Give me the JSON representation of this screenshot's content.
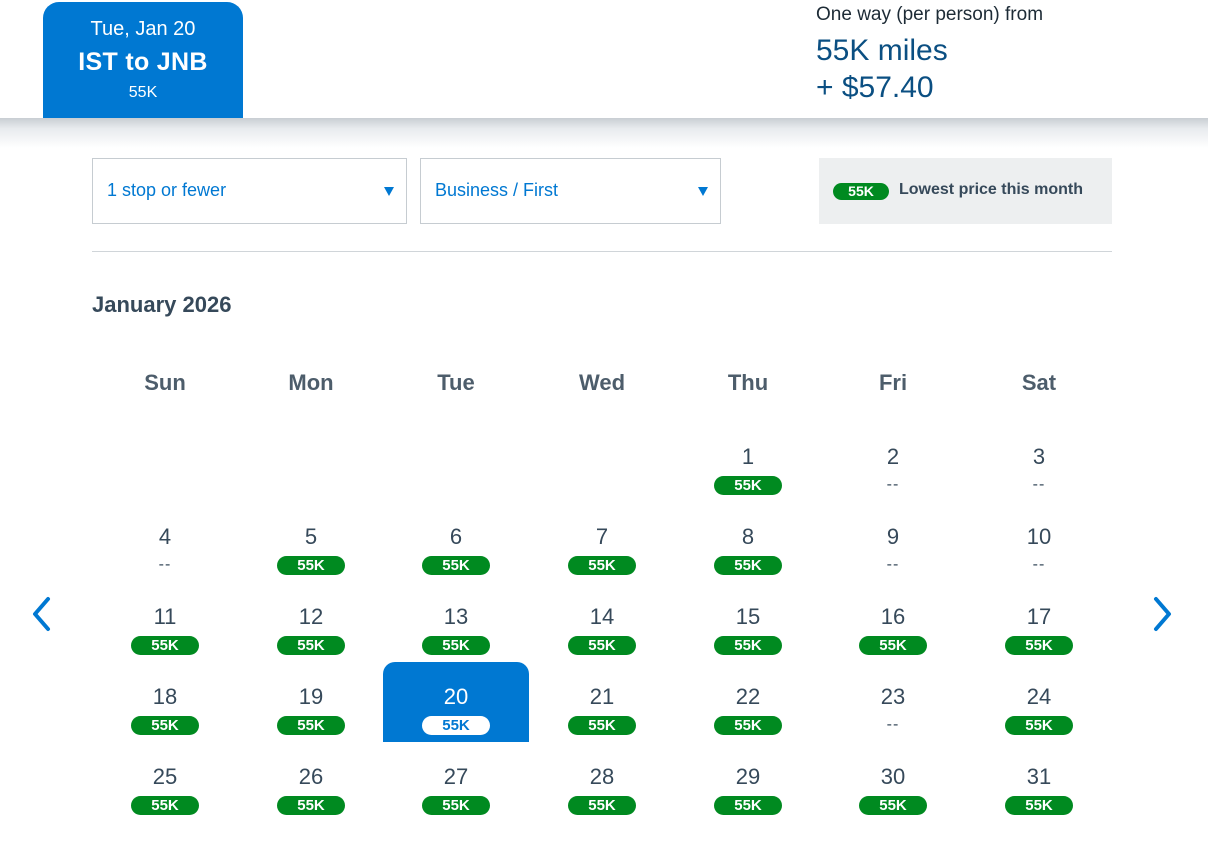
{
  "selected_tab": {
    "date": "Tue, Jan 20",
    "route": "IST to JNB",
    "price": "55K"
  },
  "fare_summary": {
    "label": "One way (per person) from",
    "miles": "55K miles",
    "cash": "+ $57.40"
  },
  "filters": {
    "stops": "1 stop or fewer",
    "cabin": "Business / First"
  },
  "legend": {
    "pill": "55K",
    "text": "Lowest price this month"
  },
  "calendar": {
    "month_title": "January 2026",
    "weekdays": [
      "Sun",
      "Mon",
      "Tue",
      "Wed",
      "Thu",
      "Fri",
      "Sat"
    ],
    "first_weekday_index": 4,
    "selected_day": 20,
    "no_price_text": "--",
    "days": [
      {
        "day": "1",
        "price": "55K"
      },
      {
        "day": "2",
        "price": null
      },
      {
        "day": "3",
        "price": null
      },
      {
        "day": "4",
        "price": null
      },
      {
        "day": "5",
        "price": "55K"
      },
      {
        "day": "6",
        "price": "55K"
      },
      {
        "day": "7",
        "price": "55K"
      },
      {
        "day": "8",
        "price": "55K"
      },
      {
        "day": "9",
        "price": null
      },
      {
        "day": "10",
        "price": null
      },
      {
        "day": "11",
        "price": "55K"
      },
      {
        "day": "12",
        "price": "55K"
      },
      {
        "day": "13",
        "price": "55K"
      },
      {
        "day": "14",
        "price": "55K"
      },
      {
        "day": "15",
        "price": "55K"
      },
      {
        "day": "16",
        "price": "55K"
      },
      {
        "day": "17",
        "price": "55K"
      },
      {
        "day": "18",
        "price": "55K"
      },
      {
        "day": "19",
        "price": "55K"
      },
      {
        "day": "20",
        "price": "55K"
      },
      {
        "day": "21",
        "price": "55K"
      },
      {
        "day": "22",
        "price": "55K"
      },
      {
        "day": "23",
        "price": null
      },
      {
        "day": "24",
        "price": "55K"
      },
      {
        "day": "25",
        "price": "55K"
      },
      {
        "day": "26",
        "price": "55K"
      },
      {
        "day": "27",
        "price": "55K"
      },
      {
        "day": "28",
        "price": "55K"
      },
      {
        "day": "29",
        "price": "55K"
      },
      {
        "day": "30",
        "price": "55K"
      },
      {
        "day": "31",
        "price": "55K"
      }
    ]
  },
  "colors": {
    "brand_blue": "#0078d2",
    "price_green": "#008a20",
    "fare_text_blue": "#0b4f82"
  },
  "icons": {
    "prev": "chevron-left-icon",
    "next": "chevron-right-icon",
    "dropdown": "caret-down-icon"
  }
}
